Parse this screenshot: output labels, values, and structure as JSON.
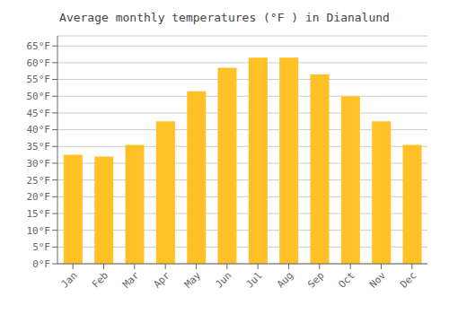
{
  "chart_data": {
    "type": "bar",
    "title": "Average monthly temperatures (°F ) in Dianalund",
    "categories": [
      "Jan",
      "Feb",
      "Mar",
      "Apr",
      "May",
      "Jun",
      "Jul",
      "Aug",
      "Sep",
      "Oct",
      "Nov",
      "Dec"
    ],
    "values": [
      32.5,
      32.0,
      35.5,
      42.5,
      51.5,
      58.5,
      61.5,
      61.5,
      56.5,
      50.0,
      42.5,
      35.5
    ],
    "color": "#FFC125",
    "ylim": [
      0,
      68
    ],
    "yticks": [
      {
        "value": 0,
        "label": "0°F"
      },
      {
        "value": 5,
        "label": "5°F"
      },
      {
        "value": 10,
        "label": "10°F"
      },
      {
        "value": 15,
        "label": "15°F"
      },
      {
        "value": 20,
        "label": "20°F"
      },
      {
        "value": 25,
        "label": "25°F"
      },
      {
        "value": 30,
        "label": "30°F"
      },
      {
        "value": 35,
        "label": "35°F"
      },
      {
        "value": 40,
        "label": "40°F"
      },
      {
        "value": 45,
        "label": "45°F"
      },
      {
        "value": 50,
        "label": "50°F"
      },
      {
        "value": 55,
        "label": "55°F"
      },
      {
        "value": 60,
        "label": "60°F"
      },
      {
        "value": 65,
        "label": "65°F"
      }
    ],
    "grid": true
  }
}
